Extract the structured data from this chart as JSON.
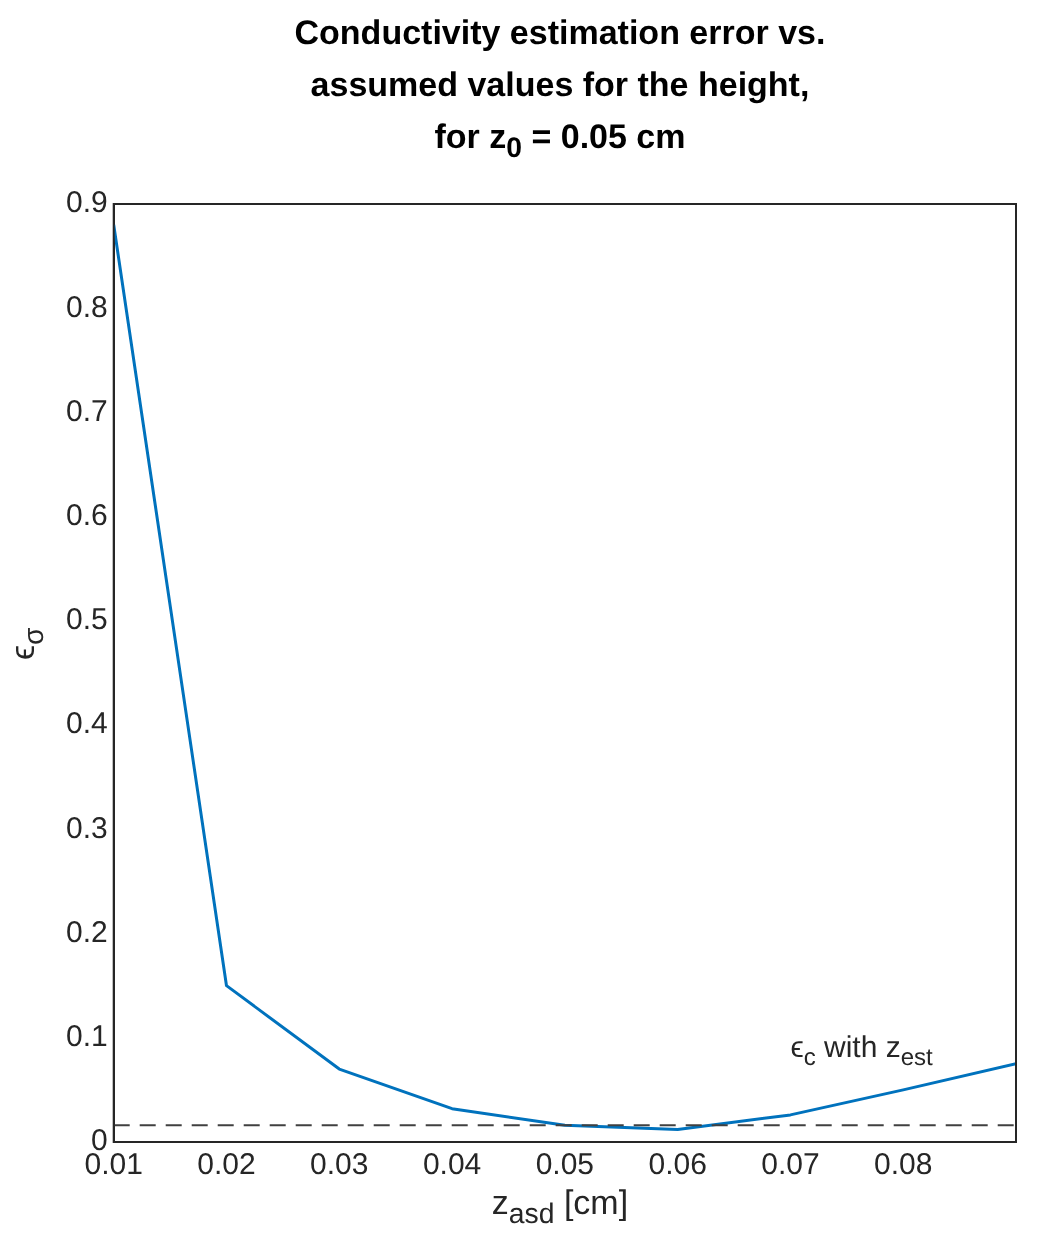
{
  "chart_data": {
    "type": "line",
    "title": "Conductivity estimation error vs.\nassumed values for the height,\nfor z$_{0}$ = 0.05 cm",
    "xlabel": "z$_{asd}$ [cm]",
    "ylabel": "ϵ$_{σ}$",
    "x": [
      0.01,
      0.02,
      0.03,
      0.04,
      0.05,
      0.06,
      0.07,
      0.08,
      0.09
    ],
    "series": [
      {
        "color": "#0072bd",
        "values": [
          0.88,
          0.15,
          0.07,
          0.032,
          0.016,
          0.012,
          0.026,
          0.05,
          0.075
        ]
      }
    ],
    "xlim": [
      0.01,
      0.09
    ],
    "xticks": [
      0.01,
      0.02,
      0.03,
      0.04,
      0.05,
      0.06,
      0.07,
      0.08
    ],
    "ylim": [
      0,
      0.9
    ],
    "yticks": [
      0,
      0.1,
      0.2,
      0.3,
      0.4,
      0.5,
      0.6,
      0.7,
      0.8,
      0.9
    ],
    "ref_lines": [
      {
        "axis": "y",
        "value": 0.016,
        "color": "#404040",
        "line_style": "dashed"
      }
    ],
    "annotations": [
      {
        "text": "ϵ$_{c}$ with z$_{est}$",
        "x": 0.07,
        "y": 0.016
      }
    ],
    "grid": false,
    "legend": false,
    "marker": "none",
    "line_style": "solid"
  }
}
